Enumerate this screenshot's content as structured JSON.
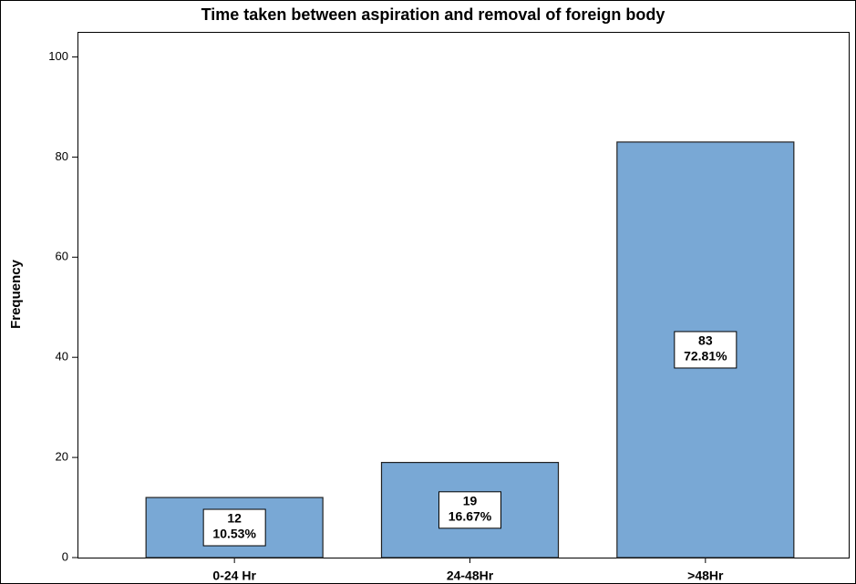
{
  "chart_data": {
    "type": "bar",
    "title": "Time taken between aspiration and removal of foreign body",
    "y_label": "Frequency",
    "categories": [
      "0-24 Hr",
      "24-48Hr",
      ">48Hr"
    ],
    "values": [
      12,
      19,
      83
    ],
    "percent_labels": [
      "10.53%",
      "16.67%",
      "72.81%"
    ],
    "color": "#79a8d5",
    "ylim": [
      0,
      105
    ],
    "yticks": [
      0,
      20,
      40,
      60,
      80,
      100
    ],
    "grid": false
  }
}
